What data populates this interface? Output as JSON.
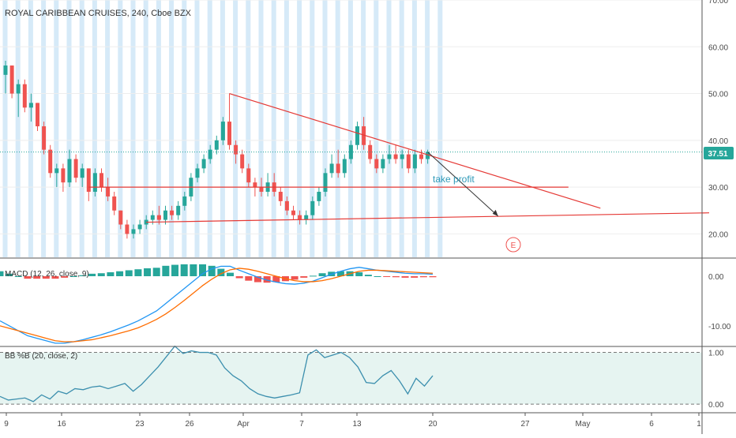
{
  "symbol_title": "ROYAL CARIBBEAN CRUISES, 240, Cboe BZX",
  "last_price_label": "37.51",
  "annotations": {
    "take_profit": "take profit",
    "earnings_marker": "E"
  },
  "indicators": {
    "macd_legend": "MACD (12, 26, close, 9)",
    "bb_legend": "BB %B (20, close, 2)"
  },
  "colors": {
    "up_candle": "#26a69a",
    "down_candle": "#ef5350",
    "session_band": "#d6eaf8",
    "trendline": "#e53935",
    "macd_line": "#2196f3",
    "signal_line": "#ff6d00",
    "bb_line": "#3c8fae",
    "bb_band_fill": "#e6f4f1",
    "price_badge": "#26a69a"
  },
  "chart_data": [
    {
      "type": "candlestick",
      "title": "ROYAL CARIBBEAN CRUISES, 240, Cboe BZX",
      "ylim": [
        15,
        70
      ],
      "y_ticks": [
        "70.00",
        "60.00",
        "50.00",
        "40.00",
        "30.00",
        "20.00"
      ],
      "x_ticks": [
        "9",
        "16",
        "23",
        "26",
        "Apr",
        "7",
        "13",
        "20",
        "27",
        "May",
        "6",
        "1"
      ],
      "last_price": 37.51,
      "candles": [
        {
          "o": 54,
          "h": 57,
          "l": 50,
          "c": 56
        },
        {
          "o": 56,
          "h": 56,
          "l": 49,
          "c": 50
        },
        {
          "o": 50,
          "h": 53,
          "l": 45,
          "c": 52
        },
        {
          "o": 52,
          "h": 53,
          "l": 46,
          "c": 47
        },
        {
          "o": 47,
          "h": 50,
          "l": 44,
          "c": 48
        },
        {
          "o": 48,
          "h": 48,
          "l": 42,
          "c": 43
        },
        {
          "o": 43,
          "h": 44,
          "l": 37,
          "c": 38
        },
        {
          "o": 38,
          "h": 39,
          "l": 32,
          "c": 33
        },
        {
          "o": 33,
          "h": 35,
          "l": 30,
          "c": 34
        },
        {
          "o": 34,
          "h": 35,
          "l": 29,
          "c": 31
        },
        {
          "o": 31,
          "h": 38,
          "l": 30,
          "c": 36
        },
        {
          "o": 36,
          "h": 37,
          "l": 31,
          "c": 32
        },
        {
          "o": 32,
          "h": 35,
          "l": 30,
          "c": 34
        },
        {
          "o": 34,
          "h": 34,
          "l": 27,
          "c": 29
        },
        {
          "o": 29,
          "h": 34,
          "l": 28,
          "c": 33
        },
        {
          "o": 33,
          "h": 34,
          "l": 29,
          "c": 30
        },
        {
          "o": 30,
          "h": 32,
          "l": 27,
          "c": 28
        },
        {
          "o": 28,
          "h": 29,
          "l": 24,
          "c": 25
        },
        {
          "o": 25,
          "h": 25,
          "l": 21,
          "c": 22
        },
        {
          "o": 22,
          "h": 23,
          "l": 19,
          "c": 20
        },
        {
          "o": 20,
          "h": 22,
          "l": 19,
          "c": 21
        },
        {
          "o": 21,
          "h": 23,
          "l": 20,
          "c": 22
        },
        {
          "o": 22,
          "h": 24,
          "l": 21,
          "c": 23
        },
        {
          "o": 23,
          "h": 25,
          "l": 22,
          "c": 24
        },
        {
          "o": 24,
          "h": 26,
          "l": 22,
          "c": 23
        },
        {
          "o": 23,
          "h": 26,
          "l": 22,
          "c": 25
        },
        {
          "o": 25,
          "h": 26,
          "l": 23,
          "c": 24
        },
        {
          "o": 24,
          "h": 27,
          "l": 23,
          "c": 26
        },
        {
          "o": 26,
          "h": 29,
          "l": 25,
          "c": 28
        },
        {
          "o": 28,
          "h": 33,
          "l": 27,
          "c": 32
        },
        {
          "o": 32,
          "h": 35,
          "l": 31,
          "c": 34
        },
        {
          "o": 34,
          "h": 37,
          "l": 33,
          "c": 36
        },
        {
          "o": 36,
          "h": 39,
          "l": 35,
          "c": 38
        },
        {
          "o": 38,
          "h": 41,
          "l": 37,
          "c": 40
        },
        {
          "o": 40,
          "h": 45,
          "l": 39,
          "c": 44
        },
        {
          "o": 44,
          "h": 50,
          "l": 38,
          "c": 39
        },
        {
          "o": 39,
          "h": 40,
          "l": 35,
          "c": 37
        },
        {
          "o": 37,
          "h": 38,
          "l": 33,
          "c": 34
        },
        {
          "o": 34,
          "h": 35,
          "l": 30,
          "c": 31
        },
        {
          "o": 31,
          "h": 32,
          "l": 28,
          "c": 30
        },
        {
          "o": 30,
          "h": 32,
          "l": 28,
          "c": 29
        },
        {
          "o": 29,
          "h": 33,
          "l": 28,
          "c": 31
        },
        {
          "o": 31,
          "h": 33,
          "l": 28,
          "c": 29
        },
        {
          "o": 29,
          "h": 30,
          "l": 26,
          "c": 27
        },
        {
          "o": 27,
          "h": 28,
          "l": 24,
          "c": 25
        },
        {
          "o": 25,
          "h": 26,
          "l": 23,
          "c": 24
        },
        {
          "o": 24,
          "h": 25,
          "l": 22,
          "c": 23
        },
        {
          "o": 23,
          "h": 25,
          "l": 22,
          "c": 24
        },
        {
          "o": 24,
          "h": 28,
          "l": 23,
          "c": 27
        },
        {
          "o": 27,
          "h": 30,
          "l": 26,
          "c": 29
        },
        {
          "o": 29,
          "h": 34,
          "l": 28,
          "c": 33
        },
        {
          "o": 33,
          "h": 37,
          "l": 32,
          "c": 35
        },
        {
          "o": 35,
          "h": 38,
          "l": 32,
          "c": 33
        },
        {
          "o": 33,
          "h": 37,
          "l": 32,
          "c": 36
        },
        {
          "o": 36,
          "h": 40,
          "l": 35,
          "c": 39
        },
        {
          "o": 39,
          "h": 44,
          "l": 38,
          "c": 43
        },
        {
          "o": 43,
          "h": 45,
          "l": 38,
          "c": 39
        },
        {
          "o": 39,
          "h": 40,
          "l": 35,
          "c": 36
        },
        {
          "o": 36,
          "h": 37,
          "l": 33,
          "c": 34
        },
        {
          "o": 34,
          "h": 37,
          "l": 33,
          "c": 36
        },
        {
          "o": 36,
          "h": 39,
          "l": 35,
          "c": 37
        },
        {
          "o": 37,
          "h": 39,
          "l": 35,
          "c": 36
        },
        {
          "o": 36,
          "h": 38,
          "l": 34,
          "c": 37
        },
        {
          "o": 37,
          "h": 38,
          "l": 33,
          "c": 34
        },
        {
          "o": 34,
          "h": 38,
          "l": 33,
          "c": 37
        },
        {
          "o": 37,
          "h": 38,
          "l": 35,
          "c": 36
        },
        {
          "o": 36,
          "h": 38,
          "l": 35,
          "c": 37.51
        }
      ],
      "trendlines": [
        {
          "x_candle": [
            35,
            66
          ],
          "y": [
            50,
            37.5
          ],
          "x_end_candle": 93,
          "y_end": 25.5
        },
        {
          "x_candle": [
            13,
            88
          ],
          "y": [
            30,
            30
          ]
        },
        {
          "x_candle": [
            22,
            110
          ],
          "y": [
            22.5,
            24.5
          ]
        }
      ],
      "projection_arrow": {
        "from_candle": 66,
        "from_y": 37.5,
        "to_candle": 77,
        "to_y": 23.8
      }
    },
    {
      "type": "line",
      "title": "MACD (12, 26, close, 9)",
      "ylim": [
        -14,
        3.5
      ],
      "y_ticks": [
        "0.00",
        "-10.00"
      ],
      "series": [
        {
          "name": "MACD",
          "values": [
            -9,
            -10,
            -11,
            -12,
            -12.5,
            -13,
            -13.5,
            -13.5,
            -13.2,
            -12.8,
            -12.3,
            -11.8,
            -11.2,
            -10.5,
            -9.8,
            -9,
            -8,
            -7,
            -5.5,
            -4,
            -2.5,
            -1,
            0.5,
            1.5,
            2,
            2,
            1.2,
            0.5,
            -0.2,
            -0.8,
            -1.2,
            -1.5,
            -1.6,
            -1.4,
            -1,
            -0.3,
            0.4,
            1,
            1.5,
            1.8,
            1.5,
            1.2,
            1,
            0.8,
            0.6,
            0.5,
            0.5,
            0.4
          ]
        },
        {
          "name": "Signal",
          "values": [
            -10,
            -10.5,
            -11,
            -11.5,
            -12,
            -12.5,
            -13,
            -13.2,
            -13.2,
            -13,
            -12.8,
            -12.4,
            -12,
            -11.5,
            -11,
            -10.4,
            -9.6,
            -8.7,
            -7.6,
            -6.3,
            -4.9,
            -3.4,
            -1.9,
            -0.6,
            0.5,
            1.3,
            1.6,
            1.4,
            1,
            0.5,
            0,
            -0.5,
            -0.9,
            -1.1,
            -1.1,
            -0.9,
            -0.5,
            0,
            0.5,
            1,
            1.2,
            1.2,
            1.1,
            1,
            0.9,
            0.8,
            0.7,
            0.6
          ]
        }
      ],
      "histogram": [
        1,
        0.5,
        0,
        -0.5,
        -0.5,
        -0.5,
        -0.5,
        -0.3,
        0,
        0.2,
        0.5,
        0.6,
        0.8,
        1,
        1.2,
        1.4,
        1.6,
        1.7,
        2.1,
        2.3,
        2.4,
        2.4,
        2.4,
        2.1,
        1.5,
        0.7,
        -0.4,
        -0.9,
        -1.2,
        -1.3,
        -1.2,
        -1,
        -0.7,
        -0.3,
        0.1,
        0.6,
        0.9,
        1,
        1,
        0.8,
        0.3,
        0,
        -0.1,
        -0.2,
        -0.3,
        -0.3,
        -0.2,
        -0.2
      ]
    },
    {
      "type": "line",
      "title": "BB %B (20, close, 2)",
      "ylim": [
        -0.15,
        1.1
      ],
      "y_ticks": [
        "1.00",
        "0.00"
      ],
      "band": [
        0,
        1
      ],
      "series": [
        {
          "name": "%B",
          "values": [
            0.15,
            0.08,
            0.1,
            0.12,
            0.05,
            0.18,
            0.1,
            0.25,
            0.2,
            0.3,
            0.28,
            0.33,
            0.35,
            0.3,
            0.35,
            0.4,
            0.25,
            0.38,
            0.55,
            0.72,
            0.92,
            1.12,
            0.98,
            1.03,
            1.0,
            1.0,
            0.95,
            0.7,
            0.55,
            0.45,
            0.3,
            0.2,
            0.15,
            0.12,
            0.15,
            0.18,
            0.22,
            0.95,
            1.05,
            0.9,
            0.95,
            1.0,
            0.9,
            0.72,
            0.42,
            0.4,
            0.55,
            0.65,
            0.45,
            0.2,
            0.5,
            0.35,
            0.55
          ]
        }
      ]
    }
  ]
}
